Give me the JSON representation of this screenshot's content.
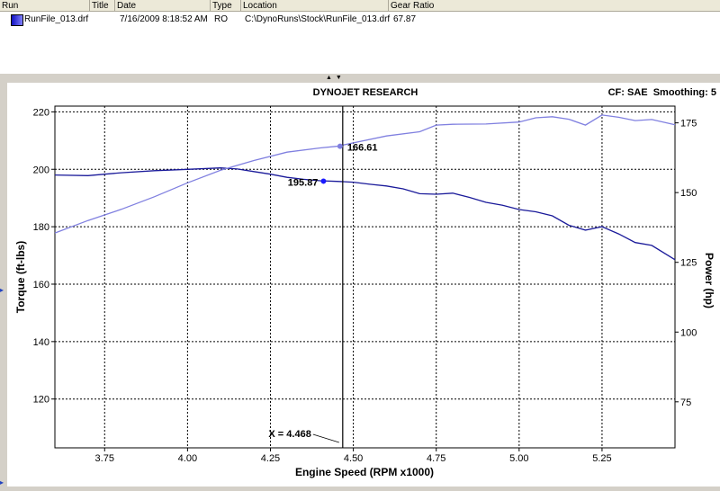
{
  "run_table": {
    "headers": [
      "Run",
      "Title",
      "Date",
      "Type",
      "Location",
      "Gear Ratio"
    ],
    "rows": [
      {
        "run": "RunFile_013.drf",
        "title": "",
        "date": "7/16/2009 8:18:52 AM",
        "type": "RO",
        "location": "C:\\DynoRuns\\Stock\\RunFile_013.drf",
        "gear_ratio": "67.87"
      }
    ]
  },
  "chart_data": {
    "type": "line",
    "title": "DYNOJET RESEARCH",
    "info": "CF: SAE  Smoothing: 5",
    "xlabel": "Engine Speed (RPM x1000)",
    "ylabel_left": "Torque (ft-lbs)",
    "ylabel_right": "Power (hp)",
    "xlim": [
      3.6,
      5.47
    ],
    "ylim_left": [
      103,
      222
    ],
    "ylim_right": [
      58.5,
      181
    ],
    "x_ticks": [
      "3.75",
      "4.00",
      "4.25",
      "4.50",
      "4.75",
      "5.00",
      "5.25"
    ],
    "y_ticks_left": [
      "120",
      "140",
      "160",
      "180",
      "200",
      "220"
    ],
    "y_ticks_right": [
      "75",
      "100",
      "125",
      "150",
      "175"
    ],
    "grid": true,
    "colors": {
      "torque": "#1a1a9a",
      "power": "#8080e0",
      "grid": "#000000"
    },
    "series": [
      {
        "name": "Torque",
        "axis": "left",
        "x": [
          3.6,
          3.7,
          3.8,
          3.9,
          4.0,
          4.1,
          4.15,
          4.2,
          4.25,
          4.3,
          4.35,
          4.4,
          4.45,
          4.5,
          4.55,
          4.6,
          4.65,
          4.7,
          4.75,
          4.8,
          4.85,
          4.9,
          4.95,
          5.0,
          5.05,
          5.1,
          5.15,
          5.2,
          5.25,
          5.3,
          5.35,
          5.4,
          5.47
        ],
        "y": [
          198,
          197.8,
          198.8,
          199.5,
          200,
          200.5,
          200.1,
          199.2,
          198.3,
          197.2,
          196.5,
          196,
          195.8,
          195.5,
          194.8,
          194.2,
          193.2,
          191.5,
          191.3,
          191.7,
          190.2,
          188.5,
          187.5,
          186,
          185.2,
          183.8,
          180.5,
          178.8,
          180,
          177.5,
          174.5,
          173.5,
          168.5
        ]
      },
      {
        "name": "Power",
        "axis": "right",
        "x": [
          3.6,
          3.7,
          3.8,
          3.9,
          4.0,
          4.1,
          4.2,
          4.3,
          4.4,
          4.45,
          4.5,
          4.6,
          4.7,
          4.75,
          4.8,
          4.9,
          5.0,
          5.05,
          5.1,
          5.15,
          5.2,
          5.25,
          5.3,
          5.35,
          5.4,
          5.47
        ],
        "y": [
          135.5,
          140,
          144,
          148.5,
          153.5,
          158,
          161.5,
          164.5,
          166,
          166.6,
          167.8,
          170.3,
          171.8,
          174.2,
          174.5,
          174.6,
          175.3,
          176.8,
          177.2,
          176.3,
          174.2,
          177.8,
          177,
          175.8,
          176.2,
          174.3
        ]
      }
    ],
    "cursor": {
      "x": 4.468,
      "label": "X = 4.468"
    },
    "markers": [
      {
        "series": "Torque",
        "x": 4.41,
        "value": 195.87,
        "label": "195.87"
      },
      {
        "series": "Power",
        "x": 4.46,
        "value": 166.61,
        "label": "166.61"
      }
    ]
  }
}
